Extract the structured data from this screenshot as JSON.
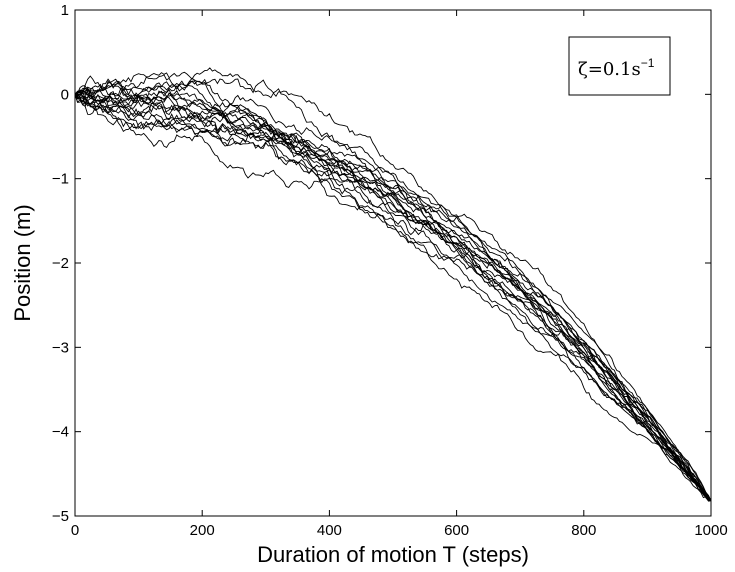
{
  "chart_data": {
    "type": "line",
    "xlabel": "Duration of motion T (steps)",
    "ylabel": "Position (m)",
    "xlim": [
      0,
      1000
    ],
    "ylim": [
      -5,
      1
    ],
    "xticks": [
      0,
      200,
      400,
      600,
      800,
      1000
    ],
    "yticks": [
      1,
      0,
      -1,
      -2,
      -3,
      -4,
      -5
    ],
    "xtick_labels": [
      "0",
      "200",
      "400",
      "600",
      "800",
      "1000"
    ],
    "ytick_labels": [
      "1",
      "0",
      "−1",
      "−2",
      "−3",
      "−4",
      "−5"
    ],
    "grid": false,
    "legend": {
      "text": "ζ=0.1s",
      "superscript": "−1",
      "placement": "top-right"
    },
    "line_color": "#000000",
    "mean_series": {
      "x": [
        0,
        100,
        200,
        300,
        400,
        500,
        600,
        700,
        800,
        900,
        1000
      ],
      "y": [
        0.0,
        -0.05,
        -0.19,
        -0.43,
        -0.77,
        -1.2,
        -1.73,
        -2.36,
        -3.08,
        -3.9,
        -4.82
      ]
    },
    "series_count": 20,
    "trajectory_end_y": -4.82
  }
}
